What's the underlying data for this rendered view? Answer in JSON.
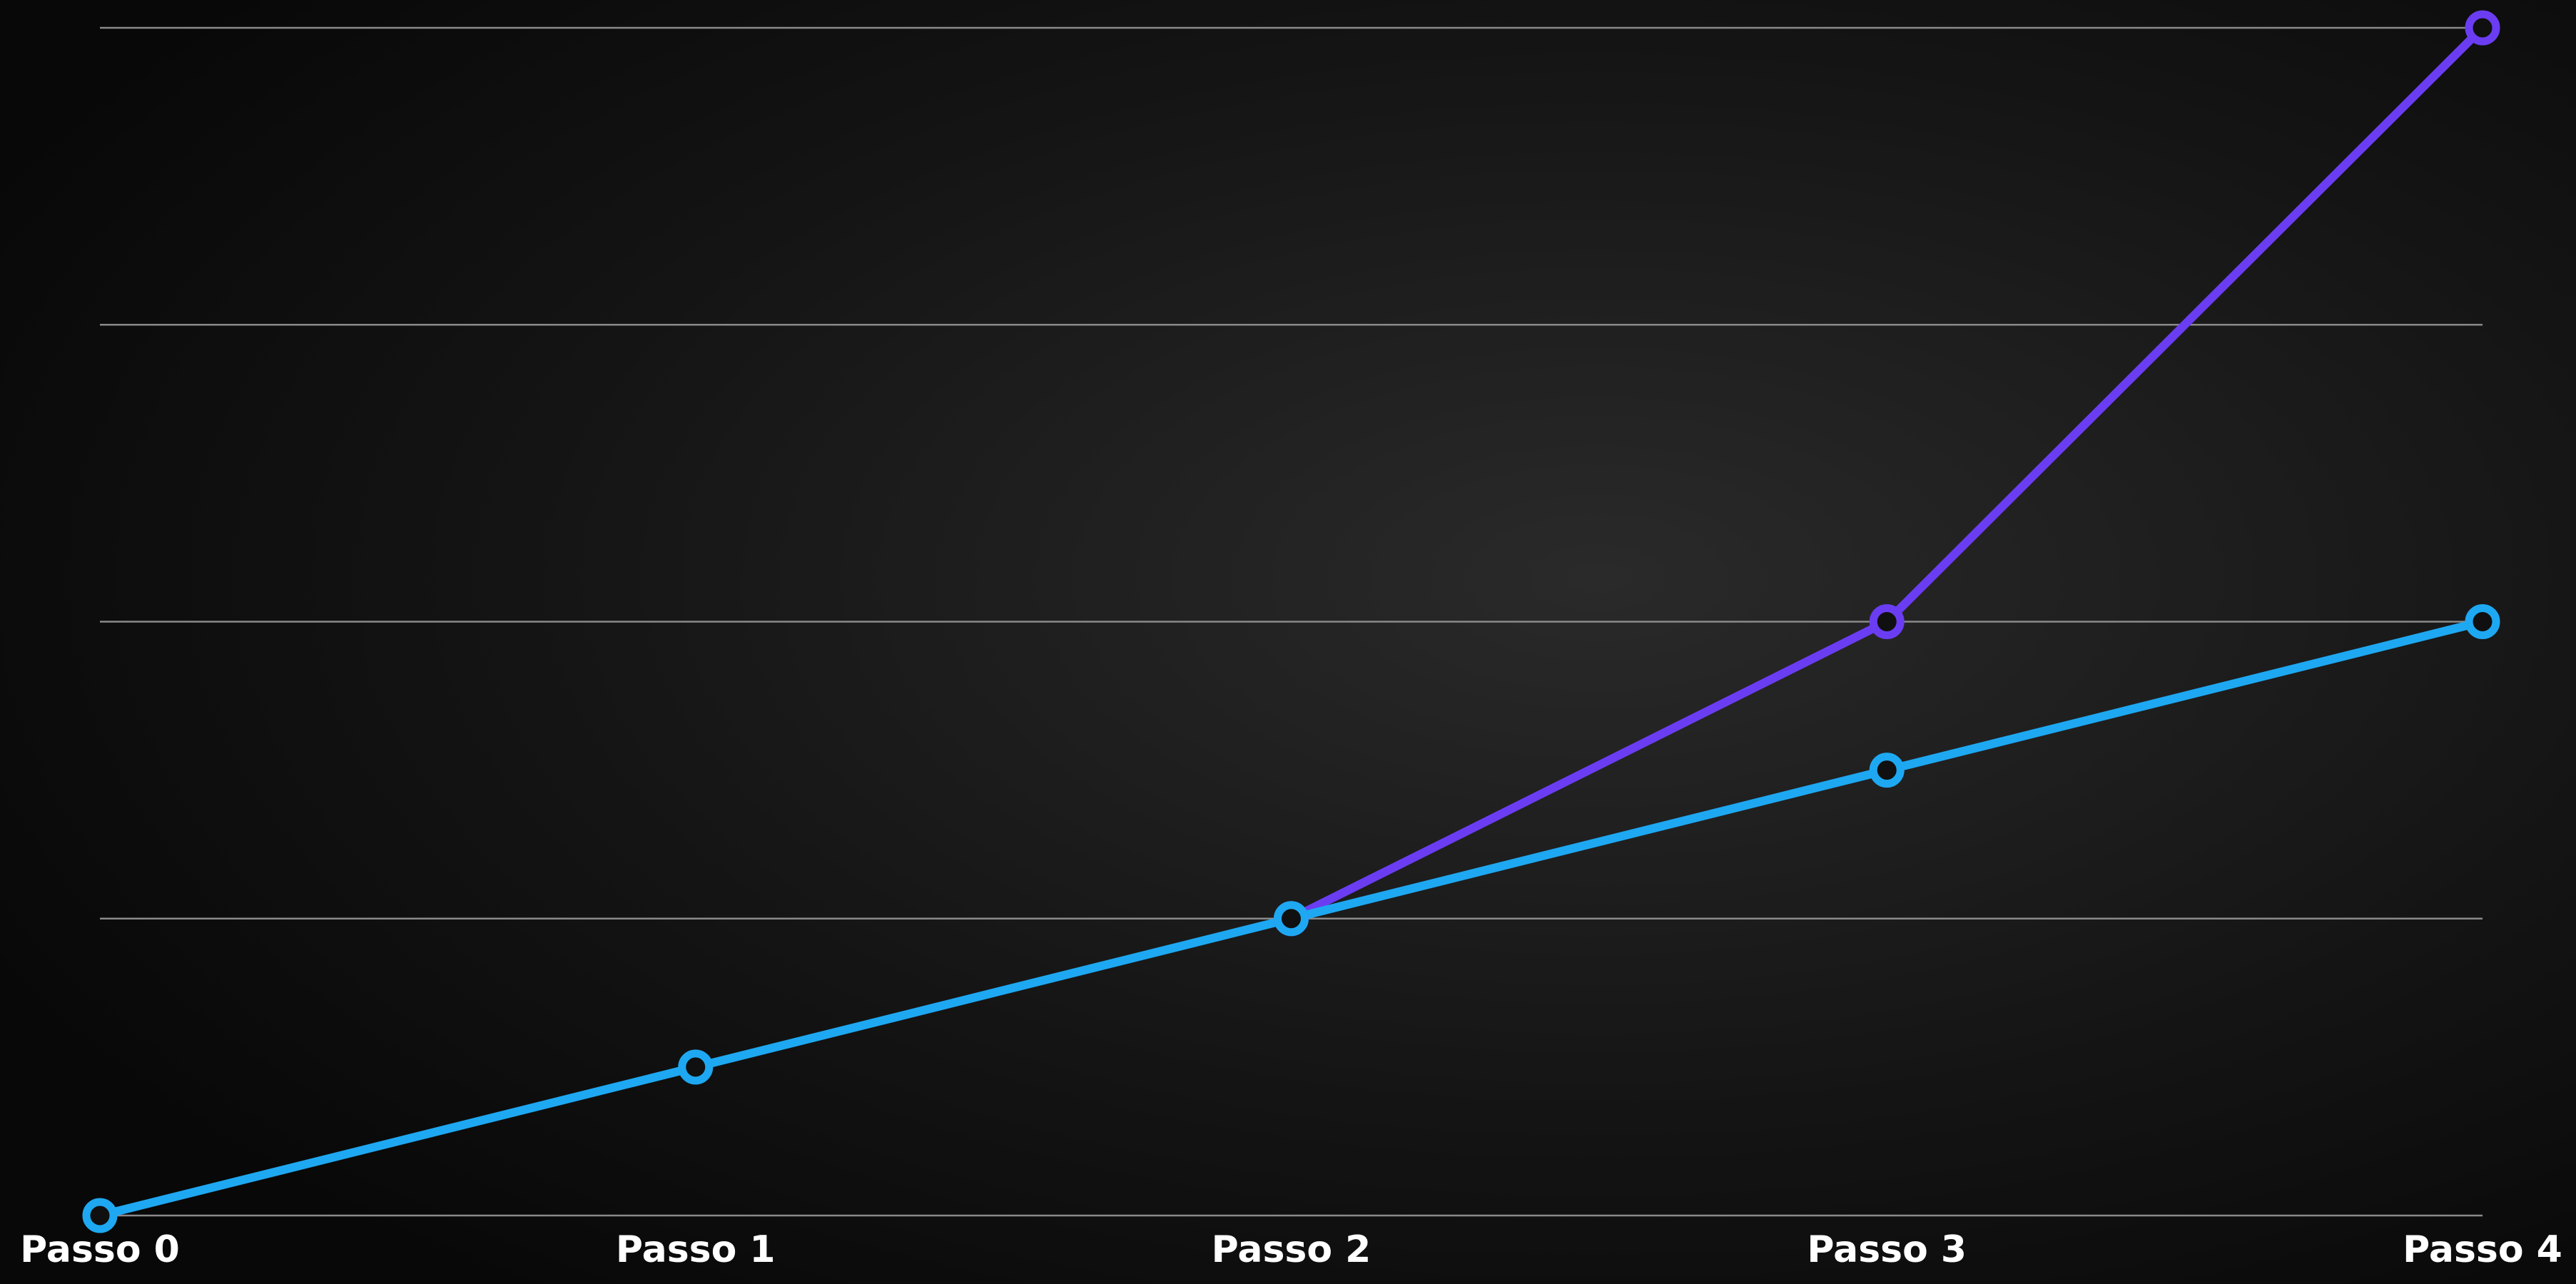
{
  "chart_data": {
    "type": "line",
    "categories": [
      "Passo 0",
      "Passo 1",
      "Passo 2",
      "Passo 3",
      "Passo 4"
    ],
    "series": [
      {
        "color": "#6b3df2",
        "values": [
          null,
          null,
          1,
          2,
          4
        ]
      },
      {
        "color": "#1ea8f2",
        "values": [
          0,
          0.5,
          1,
          1.5,
          2
        ]
      }
    ],
    "ylim": [
      0,
      4
    ],
    "yticks": [
      0,
      1,
      2,
      3,
      4
    ],
    "grid": true
  }
}
